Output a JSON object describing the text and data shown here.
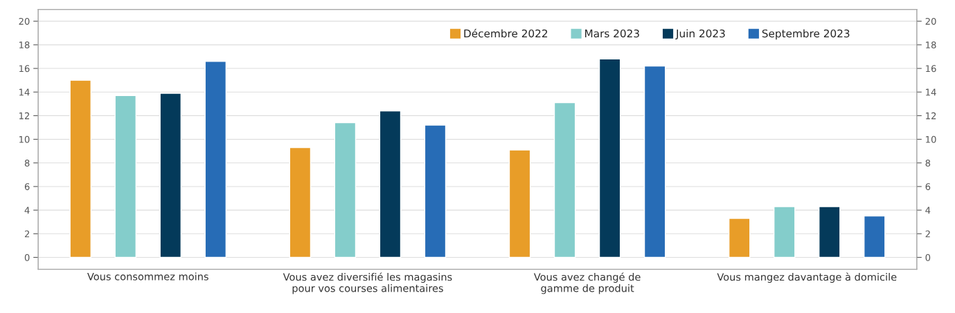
{
  "chart_data": {
    "type": "bar",
    "categories": [
      "Vous consommez moins",
      "Vous avez diversifié les magasins\npour vos courses alimentaires",
      "Vous avez changé de\ngamme de produit",
      "Vous mangez davantage à domicile"
    ],
    "series": [
      {
        "name": "Décembre 2022",
        "color": "#e89d28",
        "values": [
          15.0,
          9.3,
          9.1,
          3.3
        ]
      },
      {
        "name": "Mars 2023",
        "color": "#84cdcb",
        "values": [
          13.7,
          11.4,
          13.1,
          4.3
        ]
      },
      {
        "name": "Juin 2023",
        "color": "#043a5a",
        "values": [
          13.9,
          12.4,
          16.8,
          4.3
        ]
      },
      {
        "name": "Septembre 2023",
        "color": "#276cb6",
        "values": [
          16.6,
          11.2,
          16.2,
          3.5
        ]
      }
    ],
    "ylim": [
      -1,
      21
    ],
    "yticks": [
      0,
      2,
      4,
      6,
      8,
      10,
      12,
      14,
      16,
      18,
      20
    ],
    "y2lim": [
      -1,
      21
    ],
    "y2ticks": [
      0,
      2,
      4,
      6,
      8,
      10,
      12,
      14,
      16,
      18,
      20
    ],
    "grid": true,
    "legend": "top right"
  }
}
